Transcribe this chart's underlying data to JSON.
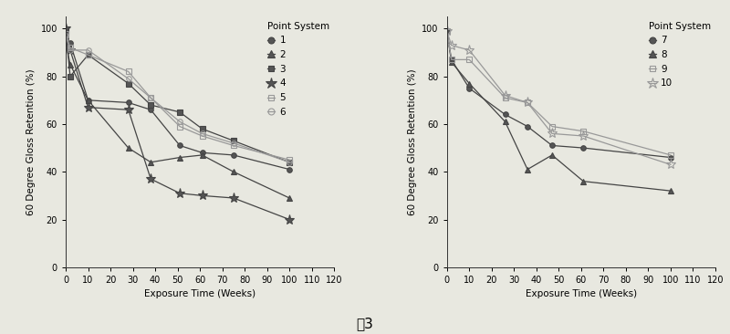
{
  "left_chart": {
    "title": "Point System",
    "xlabel": "Exposure Time (Weeks)",
    "ylabel": "60 Degree Gloss Retention (%)",
    "xlim": [
      0,
      120
    ],
    "ylim": [
      0,
      105
    ],
    "xticks": [
      0,
      10,
      20,
      30,
      40,
      50,
      60,
      70,
      80,
      90,
      100,
      110,
      120
    ],
    "yticks": [
      0,
      20,
      40,
      60,
      80,
      100
    ],
    "series": [
      {
        "label": "1",
        "marker": "o",
        "color": "#444444",
        "mfc": "#555555",
        "x": [
          0,
          2,
          10,
          28,
          38,
          51,
          61,
          75,
          100
        ],
        "y": [
          96,
          94,
          70,
          69,
          66,
          51,
          48,
          47,
          41
        ]
      },
      {
        "label": "2",
        "marker": "^",
        "color": "#444444",
        "mfc": "#555555",
        "x": [
          0,
          2,
          10,
          28,
          38,
          51,
          61,
          75,
          100
        ],
        "y": [
          94,
          85,
          70,
          50,
          44,
          46,
          47,
          40,
          29
        ]
      },
      {
        "label": "3",
        "marker": "s",
        "color": "#444444",
        "mfc": "#555555",
        "x": [
          0,
          2,
          10,
          28,
          38,
          51,
          61,
          75,
          100
        ],
        "y": [
          99,
          80,
          89,
          77,
          68,
          65,
          58,
          53,
          44
        ]
      },
      {
        "label": "4",
        "marker": "*",
        "color": "#444444",
        "mfc": "#555555",
        "x": [
          0,
          2,
          10,
          28,
          38,
          51,
          61,
          75,
          100
        ],
        "y": [
          100,
          91,
          67,
          66,
          37,
          31,
          30,
          29,
          20
        ]
      },
      {
        "label": "5",
        "marker": "s",
        "color": "#999999",
        "mfc": "none",
        "x": [
          0,
          2,
          10,
          28,
          38,
          51,
          61,
          75,
          100
        ],
        "y": [
          98,
          92,
          89,
          82,
          71,
          59,
          55,
          51,
          45
        ]
      },
      {
        "label": "6",
        "marker": "o",
        "color": "#999999",
        "mfc": "none",
        "x": [
          0,
          2,
          10,
          28,
          38,
          51,
          61,
          75,
          100
        ],
        "y": [
          97,
          91,
          91,
          79,
          71,
          61,
          56,
          52,
          44
        ]
      }
    ]
  },
  "right_chart": {
    "title": "Point System",
    "xlabel": "Exposure Time (Weeks)",
    "ylabel": "60 Degree Gloss Retention (%)",
    "xlim": [
      0,
      120
    ],
    "ylim": [
      0,
      105
    ],
    "xticks": [
      0,
      10,
      20,
      30,
      40,
      50,
      60,
      70,
      80,
      90,
      100,
      110,
      120
    ],
    "yticks": [
      0,
      20,
      40,
      60,
      80,
      100
    ],
    "series": [
      {
        "label": "7",
        "marker": "o",
        "color": "#444444",
        "mfc": "#555555",
        "x": [
          0,
          2,
          10,
          26,
          36,
          47,
          61,
          100
        ],
        "y": [
          99,
          87,
          75,
          64,
          59,
          51,
          50,
          46
        ]
      },
      {
        "label": "8",
        "marker": "^",
        "color": "#444444",
        "mfc": "#555555",
        "x": [
          0,
          2,
          10,
          26,
          36,
          47,
          61,
          100
        ],
        "y": [
          99,
          86,
          77,
          61,
          41,
          47,
          36,
          32
        ]
      },
      {
        "label": "9",
        "marker": "s",
        "color": "#999999",
        "mfc": "none",
        "x": [
          0,
          2,
          10,
          26,
          36,
          47,
          61,
          100
        ],
        "y": [
          99,
          87,
          87,
          71,
          69,
          59,
          57,
          47
        ]
      },
      {
        "label": "10",
        "marker": "*",
        "color": "#999999",
        "mfc": "none",
        "x": [
          0,
          2,
          10,
          26,
          36,
          47,
          61,
          100
        ],
        "y": [
          99,
          93,
          91,
          72,
          69,
          56,
          55,
          43
        ]
      }
    ]
  },
  "fig_label": "图3",
  "bg_color": "#e8e8e0",
  "plot_marker_sizes": {
    "o": 4,
    "^": 5,
    "s": 4,
    "*": 8
  },
  "legend_marker_sizes": {
    "o": 5,
    "^": 6,
    "s": 5,
    "*": 9
  }
}
